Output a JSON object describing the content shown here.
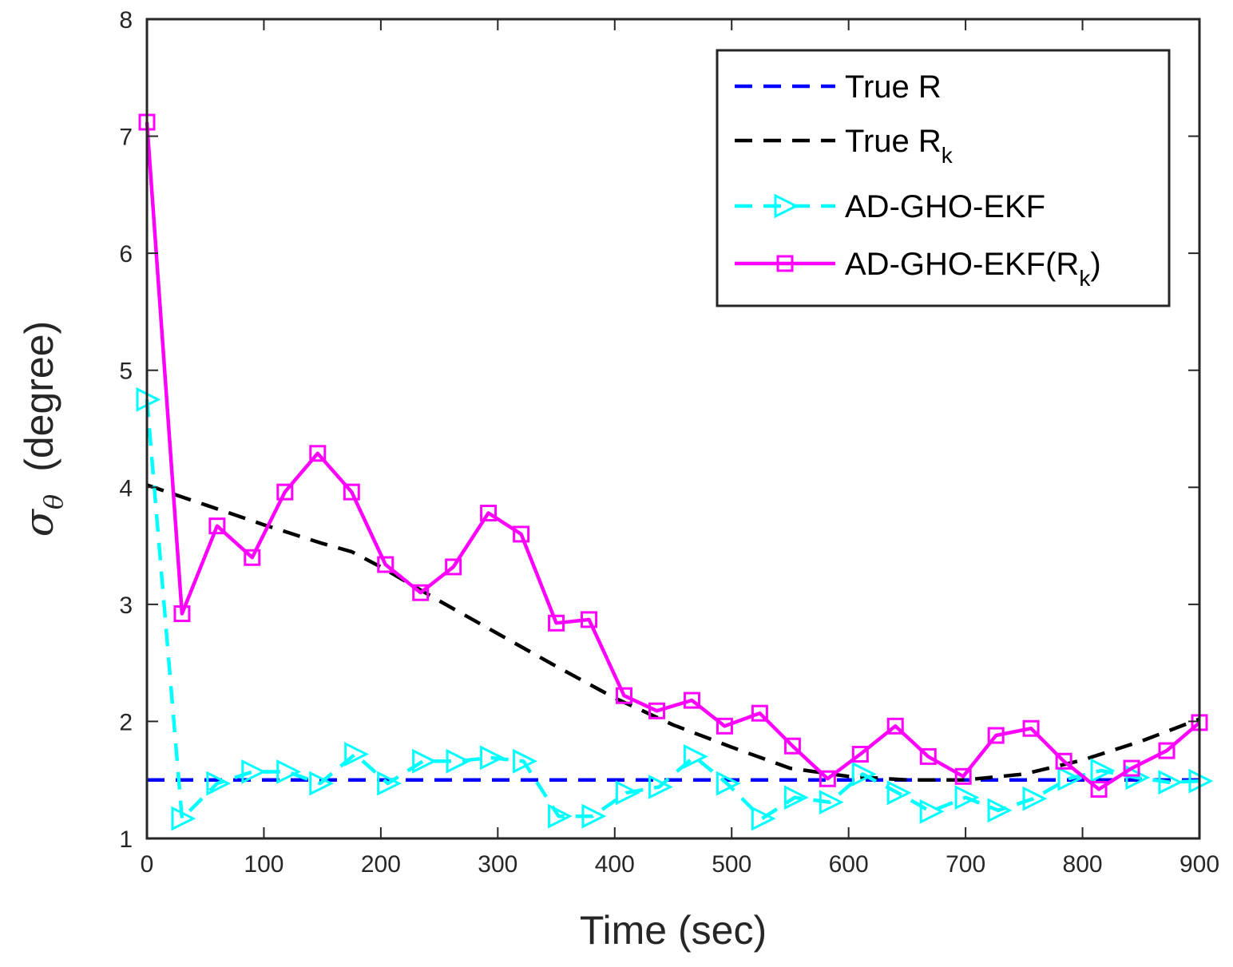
{
  "chart_data": {
    "type": "line",
    "title": "",
    "xlabel": "Time (sec)",
    "ylabel": "σ",
    "ylabel_subscript": "θ",
    "ylabel_unit": "(degree)",
    "xlim": [
      0,
      900
    ],
    "ylim": [
      1,
      8
    ],
    "xticks": [
      0,
      100,
      200,
      300,
      400,
      500,
      600,
      700,
      800,
      900
    ],
    "yticks": [
      1,
      2,
      3,
      4,
      5,
      6,
      7,
      8
    ],
    "grid": false,
    "legend_position": "top-right",
    "series": [
      {
        "name": "True R",
        "label_main": "True R",
        "label_sub": "",
        "label_after": "",
        "color": "#0000ff",
        "style": "dashed",
        "marker": "none",
        "x": [
          0,
          900
        ],
        "y": [
          1.5,
          1.5
        ]
      },
      {
        "name": "True R_k",
        "label_main": "True R",
        "label_sub": "k",
        "label_after": "",
        "color": "#000000",
        "style": "dashed",
        "marker": "none",
        "x": [
          0,
          50,
          100,
          150,
          175,
          200,
          250,
          300,
          350,
          400,
          450,
          500,
          550,
          600,
          650,
          700,
          750,
          800,
          850,
          900
        ],
        "y": [
          4.02,
          3.85,
          3.68,
          3.52,
          3.45,
          3.32,
          3.03,
          2.75,
          2.47,
          2.2,
          1.97,
          1.78,
          1.6,
          1.53,
          1.5,
          1.5,
          1.55,
          1.67,
          1.83,
          2.02
        ]
      },
      {
        "name": "AD-GHO-EKF",
        "label_main": "AD-GHO-EKF",
        "label_sub": "",
        "label_after": "",
        "color": "#00ffff",
        "style": "dashed",
        "marker": "triangle-right",
        "x": [
          0,
          30,
          60,
          90,
          120,
          148,
          178,
          206,
          236,
          265,
          294,
          322,
          352,
          381,
          410,
          438,
          468,
          496,
          526,
          554,
          584,
          612,
          642,
          670,
          700,
          728,
          758,
          788,
          816,
          846,
          874,
          900
        ],
        "y": [
          4.75,
          1.17,
          1.47,
          1.57,
          1.57,
          1.47,
          1.72,
          1.47,
          1.66,
          1.66,
          1.69,
          1.66,
          1.19,
          1.19,
          1.39,
          1.44,
          1.7,
          1.47,
          1.17,
          1.35,
          1.31,
          1.55,
          1.39,
          1.23,
          1.35,
          1.24,
          1.34,
          1.51,
          1.58,
          1.52,
          1.48,
          1.49
        ]
      },
      {
        "name": "AD-GHO-EKF(R_k)",
        "label_main": "AD-GHO-EKF(R",
        "label_sub": "k",
        "label_after": ")",
        "color": "#ff00ff",
        "style": "solid",
        "marker": "square",
        "x": [
          0,
          30,
          60,
          90,
          118,
          146,
          175,
          204,
          234,
          262,
          292,
          320,
          350,
          378,
          408,
          436,
          466,
          494,
          524,
          552,
          582,
          610,
          640,
          668,
          698,
          726,
          756,
          784,
          814,
          842,
          872,
          900
        ],
        "y": [
          7.12,
          2.92,
          3.67,
          3.4,
          3.96,
          4.29,
          3.96,
          3.34,
          3.1,
          3.32,
          3.78,
          3.6,
          2.84,
          2.87,
          2.22,
          2.09,
          2.18,
          1.96,
          2.07,
          1.79,
          1.51,
          1.72,
          1.96,
          1.7,
          1.53,
          1.88,
          1.94,
          1.66,
          1.42,
          1.6,
          1.75,
          1.99
        ]
      }
    ]
  }
}
